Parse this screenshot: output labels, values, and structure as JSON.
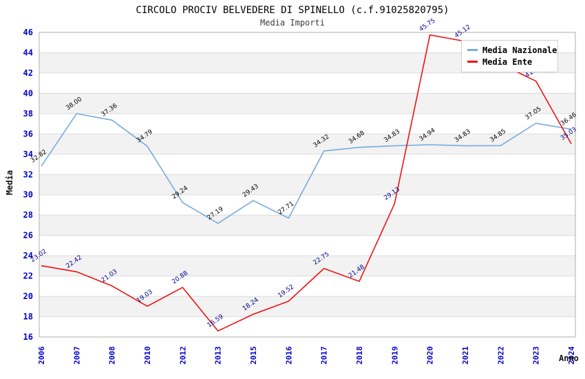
{
  "header": {
    "title": "CIRCOLO PROCIV BELVEDERE DI SPINELLO (c.f.91025820795)",
    "subtitle": "Media Importi"
  },
  "axes": {
    "y_label": "Media",
    "x_label": "Anno",
    "tick_color": "#0000cc"
  },
  "legend": {
    "items": [
      {
        "label": "Media Nazionale",
        "color": "#76abdf"
      },
      {
        "label": "Media Ente",
        "color": "#ee1111"
      }
    ]
  },
  "chart_data": {
    "type": "line",
    "title": "Media Importi",
    "xlabel": "Anno",
    "ylabel": "Media",
    "categories": [
      "2006",
      "2007",
      "2008",
      "2010",
      "2012",
      "2013",
      "2015",
      "2016",
      "2017",
      "2018",
      "2019",
      "2020",
      "2021",
      "2022",
      "2023",
      "2024"
    ],
    "series": [
      {
        "name": "Media Nazionale",
        "color": "#76abdf",
        "label_color": "#000000",
        "values": [
          32.82,
          38.0,
          37.36,
          34.79,
          29.24,
          27.19,
          29.43,
          27.71,
          34.32,
          34.68,
          34.83,
          34.94,
          34.83,
          34.85,
          37.05,
          36.46
        ]
      },
      {
        "name": "Media Ente",
        "color": "#ee1111",
        "label_color": "#00008b",
        "values": [
          23.02,
          22.42,
          21.03,
          19.03,
          20.88,
          16.59,
          18.24,
          19.52,
          22.75,
          21.48,
          29.13,
          45.75,
          45.12,
          42.9,
          41.2,
          35.03
        ]
      }
    ],
    "ylim": [
      16,
      46
    ],
    "y_tick_step": 2,
    "grid": true,
    "band_fill": "#f2f2f2",
    "gridline_color": "#dcdcdc",
    "border_color": "#aeaeae",
    "legend_position": "top-right"
  }
}
